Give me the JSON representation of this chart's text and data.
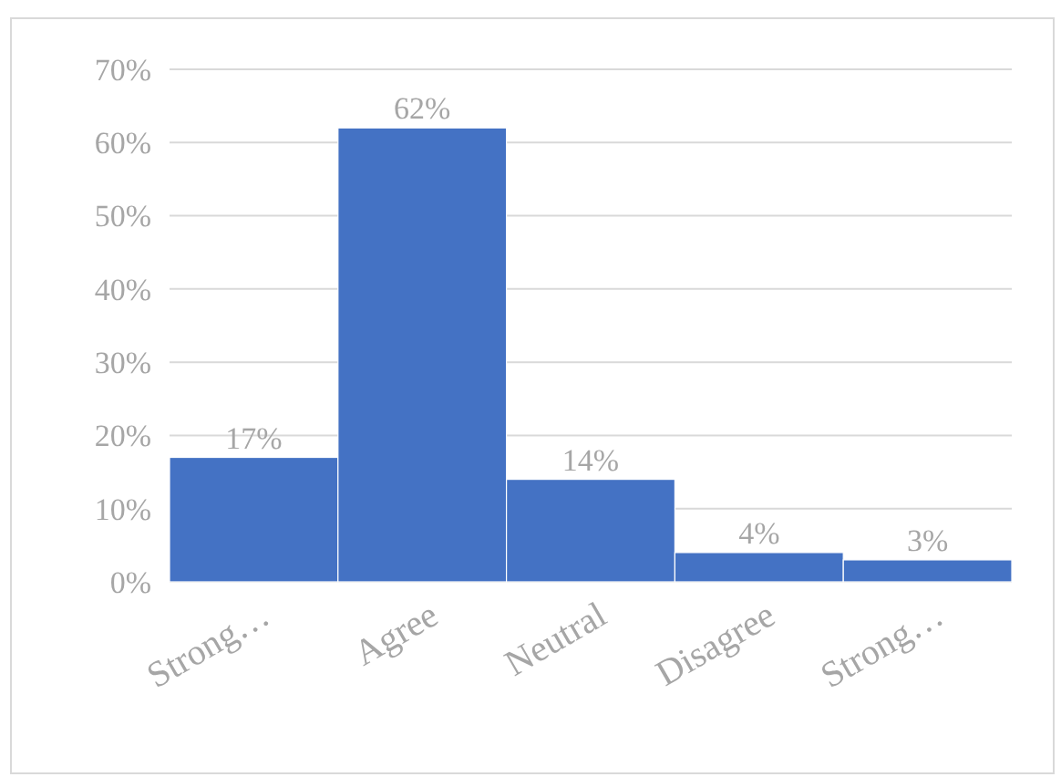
{
  "chart_data": {
    "type": "bar",
    "categories": [
      "Strong…",
      "Agree",
      "Neutral",
      "Disagree",
      "Strong…"
    ],
    "values": [
      17,
      62,
      14,
      4,
      3
    ],
    "value_labels": [
      "17%",
      "62%",
      "14%",
      "4%",
      "3%"
    ],
    "color": "#4472c4",
    "ylim": [
      0,
      70
    ],
    "yticks": [
      {
        "value": 0,
        "label": "0%"
      },
      {
        "value": 10,
        "label": "10%"
      },
      {
        "value": 20,
        "label": "20%"
      },
      {
        "value": 30,
        "label": "30%"
      },
      {
        "value": 40,
        "label": "40%"
      },
      {
        "value": 50,
        "label": "50%"
      },
      {
        "value": 60,
        "label": "60%"
      },
      {
        "value": 70,
        "label": "70%"
      }
    ],
    "grid": "y"
  }
}
